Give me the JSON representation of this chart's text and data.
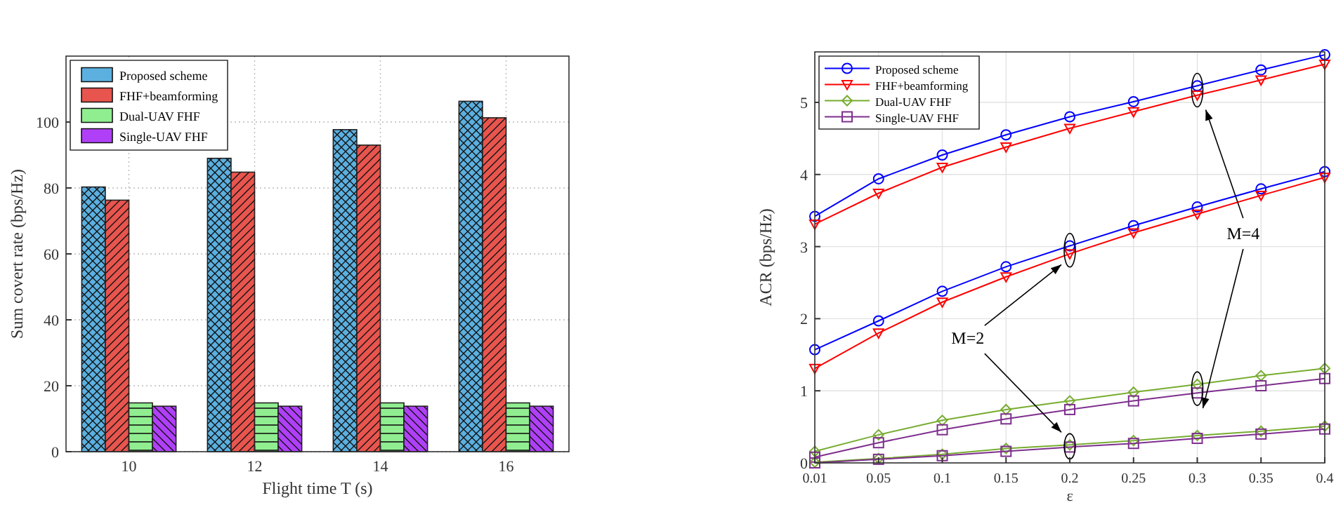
{
  "chart_data": [
    {
      "type": "bar",
      "xlabel": "Flight time T (s)",
      "ylabel": "Sum covert rate (bps/Hz)",
      "categories": [
        "10",
        "12",
        "14",
        "16"
      ],
      "series": [
        {
          "name": "Proposed scheme",
          "color": "#5bb0e0",
          "values": [
            80.3,
            89,
            97.7,
            106.3
          ]
        },
        {
          "name": "FHF+beamforming",
          "color": "#e8554e",
          "values": [
            76.3,
            84.8,
            93,
            101.3
          ]
        },
        {
          "name": "Dual-UAV FHF",
          "color": "#90ee90",
          "values": [
            14.8,
            14.8,
            14.8,
            14.8
          ]
        },
        {
          "name": "Single-UAV FHF",
          "color": "#b040f8",
          "values": [
            13.8,
            13.8,
            13.8,
            13.8
          ]
        }
      ],
      "ylim": [
        0,
        120
      ],
      "yticks": [
        0,
        20,
        40,
        60,
        80,
        100
      ],
      "grid": true,
      "legend": "top left"
    },
    {
      "type": "line",
      "xlabel": "ε",
      "ylabel": "ACR (bps/Hz)",
      "categories": [
        "0.01",
        "0.05",
        "0.1",
        "0.15",
        "0.2",
        "0.25",
        "0.3",
        "0.35",
        "0.4"
      ],
      "series": [
        {
          "name": "Proposed scheme",
          "color": "#0000ff",
          "marker": "circle",
          "values": [
            3.42,
            3.94,
            4.27,
            4.55,
            4.8,
            5.01,
            5.23,
            5.45,
            5.66
          ]
        },
        {
          "name": "FHF+beamforming",
          "color": "#ff0000",
          "marker": "triangle",
          "values": [
            3.31,
            3.74,
            4.1,
            4.38,
            4.64,
            4.87,
            5.1,
            5.31,
            5.53
          ]
        },
        {
          "name": "Dual-UAV FHF",
          "color": "#77ac30",
          "marker": "diamond",
          "values": [
            0.16,
            0.39,
            0.59,
            0.74,
            0.86,
            0.98,
            1.09,
            1.21,
            1.31
          ]
        },
        {
          "name": "Single-UAV FHF",
          "color": "#7e2f8e",
          "marker": "square",
          "values": [
            0.08,
            0.28,
            0.46,
            0.61,
            0.74,
            0.86,
            0.97,
            1.07,
            1.17
          ]
        },
        {
          "color": "#0000ff",
          "marker": "circle",
          "values": [
            1.57,
            1.97,
            2.38,
            2.72,
            3.01,
            3.29,
            3.55,
            3.8,
            4.04
          ]
        },
        {
          "color": "#ff0000",
          "marker": "triangle",
          "values": [
            1.31,
            1.8,
            2.23,
            2.58,
            2.9,
            3.19,
            3.45,
            3.71,
            3.96
          ]
        },
        {
          "color": "#77ac30",
          "marker": "diamond",
          "values": [
            0.01,
            0.06,
            0.12,
            0.2,
            0.25,
            0.31,
            0.38,
            0.44,
            0.51
          ]
        },
        {
          "color": "#7e2f8e",
          "marker": "square",
          "values": [
            0.0,
            0.05,
            0.1,
            0.16,
            0.22,
            0.27,
            0.34,
            0.4,
            0.47
          ]
        }
      ],
      "ylim": [
        0,
        5.7
      ],
      "yticks": [
        0,
        1,
        2,
        3,
        4,
        5
      ],
      "grid": true,
      "legend": "top left",
      "annotations": [
        "M=2",
        "M=4"
      ]
    }
  ]
}
